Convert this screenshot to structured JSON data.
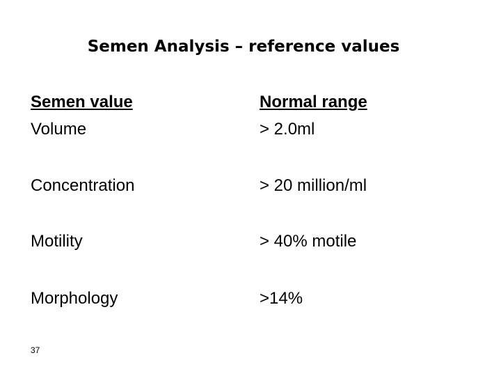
{
  "header": {
    "title": "Semen Analysis – reference values"
  },
  "table": {
    "headers": [
      "Semen value",
      "Normal range"
    ],
    "rows": [
      [
        "Volume",
        "> 2.0ml"
      ],
      [
        "Concentration",
        "> 20 million/ml"
      ],
      [
        "Motility",
        "> 40% motile"
      ],
      [
        "Morphology",
        ">14%"
      ]
    ]
  },
  "footer": {
    "page_number": "37"
  }
}
